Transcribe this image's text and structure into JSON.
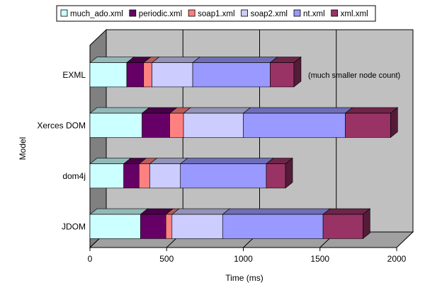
{
  "chart_data": {
    "type": "bar",
    "orientation": "horizontal",
    "stacked": true,
    "style": "3d",
    "categories": [
      "EXML",
      "Xerces DOM",
      "dom4j",
      "JDOM"
    ],
    "series": [
      {
        "name": "much_ado.xml",
        "color": "#CCFFFF",
        "values": [
          240,
          340,
          220,
          330
        ]
      },
      {
        "name": "periodic.xml",
        "color": "#660066",
        "values": [
          110,
          180,
          100,
          165
        ]
      },
      {
        "name": "soap1.xml",
        "color": "#FF8080",
        "values": [
          55,
          90,
          70,
          40
        ]
      },
      {
        "name": "soap2.xml",
        "color": "#CCCCFF",
        "values": [
          265,
          390,
          200,
          330
        ]
      },
      {
        "name": "nt.xml",
        "color": "#9999FF",
        "values": [
          505,
          665,
          560,
          655
        ]
      },
      {
        "name": "xml.xml",
        "color": "#993366",
        "values": [
          155,
          295,
          125,
          260
        ]
      }
    ],
    "xlabel": "Time (ms)",
    "ylabel": "Model",
    "xlim": [
      0,
      2000
    ],
    "xticks": [
      "0",
      "500",
      "1000",
      "1500",
      "2000"
    ],
    "grid": true,
    "legend_position": "top",
    "annotations": [
      {
        "category": "EXML",
        "text": "(much smaller node count)"
      }
    ]
  }
}
